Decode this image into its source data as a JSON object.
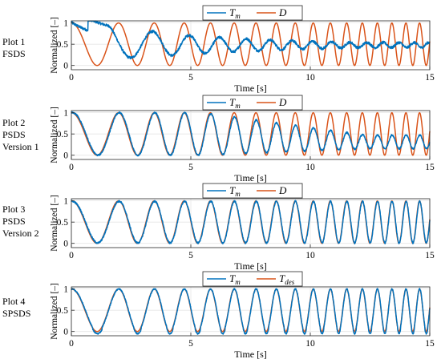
{
  "rows": [
    {
      "label_lines": [
        "Plot 1",
        "FSDS"
      ]
    },
    {
      "label_lines": [
        "Plot 2",
        "PSDS",
        "Version 1"
      ]
    },
    {
      "label_lines": [
        "Plot 3",
        "PSDS",
        "Version 2"
      ]
    },
    {
      "label_lines": [
        "Plot 4",
        "SPSDS"
      ]
    }
  ],
  "colors": {
    "measured": "#0072BD",
    "reference": "#D95319",
    "grid": "#e6e6e6",
    "axis": "#262626"
  },
  "chart_data": [
    {
      "type": "line",
      "xlabel": "Time [s]",
      "ylabel": "Normalized [–]",
      "xlim": [
        0,
        15
      ],
      "ylim": [
        -0.1,
        1.05
      ],
      "xticks": [
        0,
        5,
        10,
        15
      ],
      "yticks": [
        0,
        0.5,
        1
      ],
      "grid": true,
      "legend_position": "top-right",
      "series": [
        {
          "name": "T",
          "name_sub": "m",
          "role": "measured",
          "behavior": "noisy, lagging and damped toward 0.5",
          "x_range": [
            0,
            15
          ]
        },
        {
          "name": "D",
          "name_sub": "",
          "role": "reference",
          "function": "0.5 + 0.5*cos(phase(t)), phase'(t) = 2.6 + 0.59*t rad/s",
          "x_range": [
            0,
            15
          ]
        }
      ]
    },
    {
      "type": "line",
      "xlabel": "Time [s]",
      "ylabel": "Normalized [–]",
      "xlim": [
        0,
        15
      ],
      "ylim": [
        -0.1,
        1.05
      ],
      "xticks": [
        0,
        5,
        10,
        15
      ],
      "yticks": [
        0,
        0.5,
        1
      ],
      "grid": true,
      "legend_position": "top-right",
      "series": [
        {
          "name": "T",
          "name_sub": "m",
          "role": "measured",
          "behavior": "tracks reference until ~6 s, then amplitude shrinks to ~0.3",
          "x_range": [
            0,
            15
          ]
        },
        {
          "name": "D",
          "name_sub": "",
          "role": "reference",
          "function": "0.5 + 0.5*cos(phase(t))",
          "x_range": [
            0,
            15
          ]
        }
      ]
    },
    {
      "type": "line",
      "xlabel": "Time [s]",
      "ylabel": "Normalized [–]",
      "xlim": [
        0,
        15
      ],
      "ylim": [
        -0.1,
        1.05
      ],
      "xticks": [
        0,
        5,
        10,
        15
      ],
      "yticks": [
        0,
        0.5,
        1
      ],
      "grid": true,
      "legend_position": "top-right",
      "series": [
        {
          "name": "T",
          "name_sub": "m",
          "role": "measured",
          "behavior": "tracks reference closely over whole range",
          "x_range": [
            0,
            15
          ]
        },
        {
          "name": "D",
          "name_sub": "",
          "role": "reference",
          "function": "0.5 + 0.5*cos(phase(t))",
          "x_range": [
            0,
            15
          ]
        }
      ]
    },
    {
      "type": "line",
      "xlabel": "Time [s]",
      "ylabel": "Normalized [–]",
      "xlim": [
        0,
        15
      ],
      "ylim": [
        -0.1,
        1.05
      ],
      "xticks": [
        0,
        5,
        10,
        15
      ],
      "yticks": [
        0,
        0.5,
        1
      ],
      "grid": true,
      "legend_position": "top-right",
      "series": [
        {
          "name": "T",
          "name_sub": "m",
          "role": "measured",
          "behavior": "tracks desired signal closely, slight undershoot at minima",
          "x_range": [
            0,
            15
          ]
        },
        {
          "name": "T",
          "name_sub": "des",
          "role": "reference",
          "function": "0.5 + 0.5*cos(phase(t))",
          "x_range": [
            0,
            15
          ]
        }
      ]
    }
  ]
}
